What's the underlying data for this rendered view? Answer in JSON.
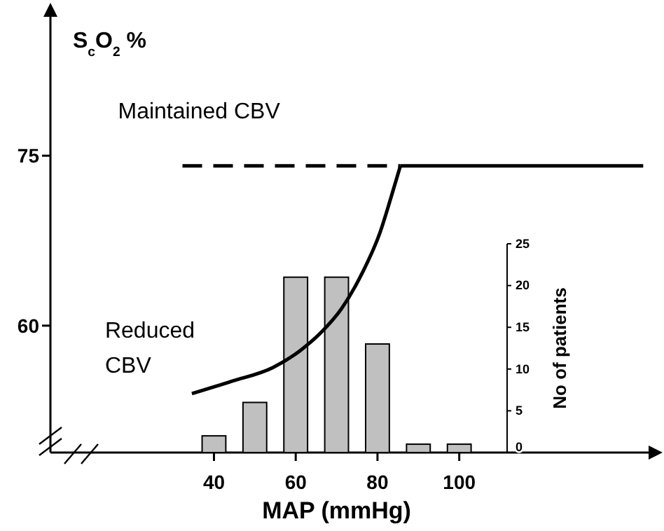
{
  "chart_data": {
    "type": "line",
    "xlabel": "MAP (mmHg)",
    "ylabel": "S$_{c}$O$_{2}$ %",
    "y2label": "No of patients",
    "xlim": [
      0,
      147
    ],
    "xticks": [
      40,
      60,
      80,
      100
    ],
    "ylim": [
      48.8,
      88
    ],
    "yticks": [
      60,
      75
    ],
    "y2lim": [
      0,
      25
    ],
    "y2ticks": [
      0,
      5,
      10,
      15,
      20,
      25
    ],
    "grid": false,
    "series": [
      {
        "type": "bar",
        "axis": "y2",
        "color": "#c0c0c0",
        "x": [
          40,
          50,
          60,
          70,
          80,
          90,
          100
        ],
        "values": [
          2,
          6,
          21,
          21,
          13,
          1,
          1
        ]
      },
      {
        "name": "Maintained CBV",
        "color": "#000000",
        "line_style": "dashed",
        "x": [
          32.3,
          85.6
        ],
        "values": [
          74.1,
          74.1
        ]
      },
      {
        "color": "#000000",
        "line_style": "solid",
        "x": [
          85.6,
          145
        ],
        "values": [
          74.1,
          74.1
        ]
      },
      {
        "name": "Reduced CBV",
        "color": "#000000",
        "line_style": "solid",
        "x": [
          34.6,
          44.4,
          54.4,
          61.1,
          66.2,
          71.2,
          76.2,
          80.6,
          83.3,
          85.6
        ],
        "values": [
          54.0,
          55.1,
          56.3,
          57.8,
          59.4,
          61.5,
          64.6,
          68.2,
          71.3,
          74.1
        ]
      }
    ]
  }
}
